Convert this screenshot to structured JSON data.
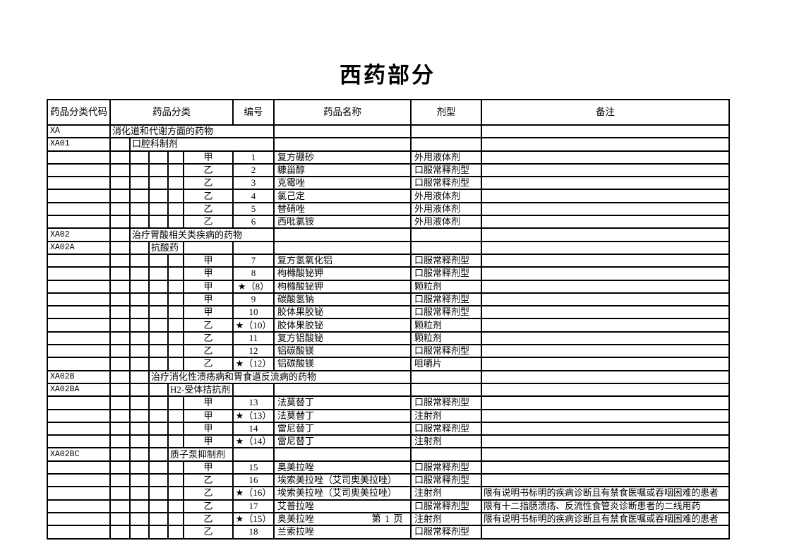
{
  "title": "西药部分",
  "footer": {
    "page_label": "第 1 页"
  },
  "table": {
    "headers": {
      "code": "药品分类代码",
      "category": "药品分类",
      "number": "编号",
      "name": "药品名称",
      "form": "剂型",
      "remark": "备注"
    },
    "rows": [
      {
        "type": "category",
        "level": 1,
        "code": "XA",
        "label": "消化道和代谢方面的药物"
      },
      {
        "type": "category",
        "level": 2,
        "code": "XA01",
        "label": "口腔科制剂"
      },
      {
        "type": "drug",
        "class": "甲",
        "number": "1",
        "name": "复方硼砂",
        "form": "外用液体剂",
        "remark": ""
      },
      {
        "type": "drug",
        "class": "乙",
        "number": "2",
        "name": "糠甾醇",
        "form": "口服常释剂型",
        "remark": ""
      },
      {
        "type": "drug",
        "class": "乙",
        "number": "3",
        "name": "克霉唑",
        "form": "口服常释剂型",
        "remark": ""
      },
      {
        "type": "drug",
        "class": "乙",
        "number": "4",
        "name": "氯己定",
        "form": "外用液体剂",
        "remark": ""
      },
      {
        "type": "drug",
        "class": "乙",
        "number": "5",
        "name": "替硝唑",
        "form": "外用液体剂",
        "remark": ""
      },
      {
        "type": "drug",
        "class": "乙",
        "number": "6",
        "name": "西吡氯铵",
        "form": "外用液体剂",
        "remark": ""
      },
      {
        "type": "category",
        "level": 2,
        "code": "XA02",
        "label": "治疗胃酸相关类疾病的药物"
      },
      {
        "type": "category",
        "level": 3,
        "code": "XA02A",
        "label": "抗酸药"
      },
      {
        "type": "drug",
        "class": "甲",
        "number": "7",
        "name": "复方氢氧化铝",
        "form": "口服常释剂型",
        "remark": ""
      },
      {
        "type": "drug",
        "class": "甲",
        "number": "8",
        "name": "枸橼酸铋钾",
        "form": "口服常释剂型",
        "remark": ""
      },
      {
        "type": "drug",
        "class": "甲",
        "number": "★（8）",
        "name": "枸橼酸铋钾",
        "form": "颗粒剂",
        "remark": ""
      },
      {
        "type": "drug",
        "class": "甲",
        "number": "9",
        "name": "碳酸氢钠",
        "form": "口服常释剂型",
        "remark": ""
      },
      {
        "type": "drug",
        "class": "甲",
        "number": "10",
        "name": "胶体果胶铋",
        "form": "口服常释剂型",
        "remark": ""
      },
      {
        "type": "drug",
        "class": "乙",
        "number": "★（10）",
        "name": "胶体果胶铋",
        "form": "颗粒剂",
        "remark": ""
      },
      {
        "type": "drug",
        "class": "乙",
        "number": "11",
        "name": "复方铝酸铋",
        "form": "颗粒剂",
        "remark": ""
      },
      {
        "type": "drug",
        "class": "乙",
        "number": "12",
        "name": "铝碳酸镁",
        "form": "口服常释剂型",
        "remark": ""
      },
      {
        "type": "drug",
        "class": "乙",
        "number": "★（12）",
        "name": "铝碳酸镁",
        "form": "咀嚼片",
        "remark": ""
      },
      {
        "type": "category",
        "level": 3,
        "code": "XA02B",
        "label": "治疗消化性溃疡病和胃食道反流病的药物"
      },
      {
        "type": "category",
        "level": 4,
        "code": "XA02BA",
        "label": "H2-受体拮抗剂"
      },
      {
        "type": "drug",
        "class": "甲",
        "number": "13",
        "name": "法莫替丁",
        "form": "口服常释剂型",
        "remark": ""
      },
      {
        "type": "drug",
        "class": "甲",
        "number": "★（13）",
        "name": "法莫替丁",
        "form": "注射剂",
        "remark": ""
      },
      {
        "type": "drug",
        "class": "甲",
        "number": "14",
        "name": "雷尼替丁",
        "form": "口服常释剂型",
        "remark": ""
      },
      {
        "type": "drug",
        "class": "甲",
        "number": "★（14）",
        "name": "雷尼替丁",
        "form": "注射剂",
        "remark": ""
      },
      {
        "type": "category",
        "level": 4,
        "code": "XA02BC",
        "label": "质子泵抑制剂"
      },
      {
        "type": "drug",
        "class": "甲",
        "number": "15",
        "name": "奥美拉唑",
        "form": "口服常释剂型",
        "remark": ""
      },
      {
        "type": "drug",
        "class": "乙",
        "number": "16",
        "name": "埃索美拉唑（艾司奥美拉唑）",
        "form": "口服常释剂型",
        "remark": ""
      },
      {
        "type": "drug",
        "class": "乙",
        "number": "★（16）",
        "name": "埃索美拉唑（艾司奥美拉唑）",
        "form": "注射剂",
        "remark": "限有说明书标明的疾病诊断且有禁食医嘱或吞咽困难的患者"
      },
      {
        "type": "drug",
        "class": "乙",
        "number": "17",
        "name": "艾普拉唑",
        "form": "口服常释剂型",
        "remark": "限有十二指肠溃疡、反流性食管炎诊断患者的二线用药"
      },
      {
        "type": "drug",
        "class": "乙",
        "number": "★（15）",
        "name": "奥美拉唑",
        "form": "注射剂",
        "remark": "限有说明书标明的疾病诊断且有禁食医嘱或吞咽困难的患者"
      },
      {
        "type": "drug",
        "class": "乙",
        "number": "18",
        "name": "兰索拉唑",
        "form": "口服常释剂型",
        "remark": ""
      }
    ]
  }
}
